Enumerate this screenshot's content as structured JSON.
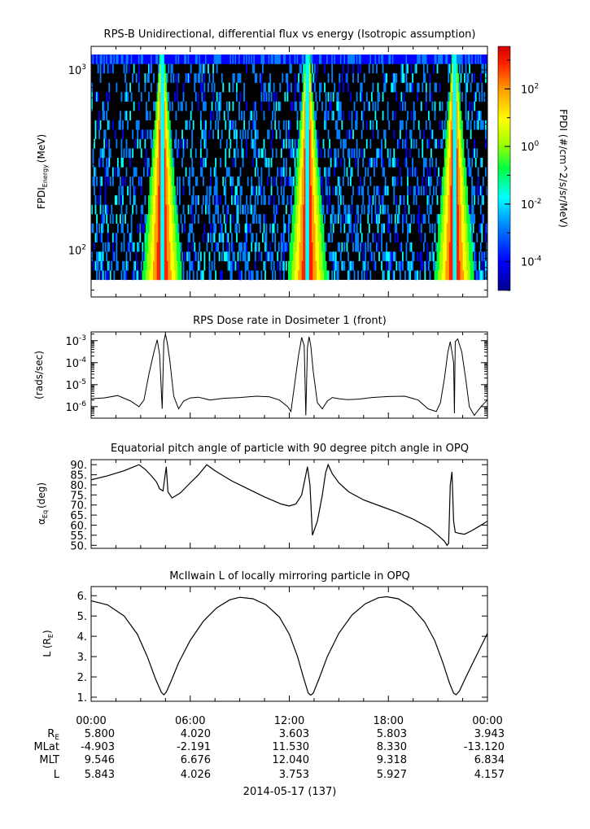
{
  "chart_data": [
    {
      "type": "heatmap",
      "title": "RPS-B  Unidirectional, differential flux vs energy (Isotropic assumption)",
      "ylabel": "FPDI",
      "ylabel_sub": "Energy",
      "ylabel_unit": "(MeV)",
      "yscale": "log",
      "ylim": [
        55,
        1350
      ],
      "ytick_labels": [
        {
          "base": "10",
          "exp": "3",
          "value": 1000
        },
        {
          "base": "10",
          "exp": "2",
          "value": 100
        }
      ],
      "xlim_hours": [
        0,
        24
      ],
      "energy_bins": 24,
      "colorbar": {
        "label": "FPDI (#/cm^2/s/sr/MeV)",
        "scale": "log",
        "range": [
          1e-05,
          3000
        ],
        "tick_labels": [
          {
            "base": "10",
            "exp": "2",
            "value": 100
          },
          {
            "base": "10",
            "exp": "0",
            "value": 1
          },
          {
            "base": "10",
            "exp": "-2",
            "value": 0.01
          },
          {
            "base": "10",
            "exp": "-4",
            "value": 0.0001
          }
        ]
      },
      "belt_passes_hours": [
        4.3,
        13.1,
        22.0
      ]
    },
    {
      "type": "line",
      "title": "RPS  Dose rate in Dosimeter 1 (front)",
      "ylabel": "(rads/sec)",
      "yscale": "log",
      "ylim": [
        3e-07,
        0.0025
      ],
      "ytick_labels": [
        {
          "base": "10",
          "exp": "-3",
          "value": 0.001
        },
        {
          "base": "10",
          "exp": "-4",
          "value": 0.0001
        },
        {
          "base": "10",
          "exp": "-5",
          "value": 1e-05
        },
        {
          "base": "10",
          "exp": "-6",
          "value": 1e-06
        }
      ],
      "x": [
        0,
        0.8,
        1.6,
        2.4,
        2.9,
        3.2,
        3.5,
        3.8,
        4.0,
        4.15,
        4.3,
        4.4,
        4.5,
        4.6,
        4.75,
        5.0,
        5.3,
        5.6,
        6.0,
        6.5,
        7.2,
        8.0,
        9.0,
        10.0,
        10.8,
        11.4,
        11.9,
        12.1,
        12.35,
        12.55,
        12.75,
        12.9,
        13.0,
        13.1,
        13.2,
        13.3,
        13.45,
        13.7,
        14.0,
        14.3,
        14.6,
        15.0,
        15.5,
        16.2,
        17.0,
        18.0,
        19.0,
        19.8,
        20.4,
        20.9,
        21.15,
        21.4,
        21.6,
        21.75,
        21.85,
        21.95,
        22.0,
        22.05,
        22.2,
        22.45,
        22.7,
        22.9,
        23.2,
        23.6,
        24.0
      ],
      "y": [
        2.3e-06,
        2.5e-06,
        3.2e-06,
        1.8e-06,
        1e-06,
        2e-06,
        3e-05,
        0.0003,
        0.0011,
        0.00022,
        8e-07,
        0.0009,
        0.002,
        0.0009,
        0.00015,
        3e-06,
        8e-07,
        1.8e-06,
        2.5e-06,
        2.7e-06,
        2e-06,
        2.4e-06,
        2.6e-06,
        3e-06,
        2.8e-06,
        2e-06,
        1e-06,
        6e-07,
        1.5e-05,
        0.0002,
        0.0014,
        0.0006,
        4e-07,
        0.0005,
        0.0015,
        0.0006,
        4e-05,
        1.5e-06,
        8e-07,
        1.8e-06,
        2.6e-06,
        2.3e-06,
        2.1e-06,
        2.2e-06,
        2.6e-06,
        2.9e-06,
        3e-06,
        2e-06,
        8e-07,
        6e-07,
        1.5e-06,
        2e-05,
        0.0003,
        0.0009,
        0.0003,
        0.0001,
        5e-07,
        0.0009,
        0.0012,
        0.0003,
        1.5e-05,
        1e-06,
        4e-07,
        1e-06,
        2e-06
      ]
    },
    {
      "type": "line",
      "title": "Equatorial pitch angle of particle with 90 degree pitch angle in OPQ",
      "ylabel": "α",
      "ylabel_sub": "Eq",
      "ylabel_unit": "(deg)",
      "ylim": [
        48.5,
        92.5
      ],
      "yticks": [
        50,
        55,
        60,
        65,
        70,
        75,
        80,
        85,
        90
      ],
      "ytick_labels": [
        "50.",
        "55.",
        "60.",
        "65.",
        "70.",
        "75.",
        "80.",
        "85.",
        "90."
      ],
      "x": [
        0,
        1.0,
        2.0,
        2.9,
        3.3,
        3.7,
        3.95,
        4.15,
        4.35,
        4.55,
        4.65,
        4.9,
        5.4,
        6.0,
        6.5,
        7.0,
        7.5,
        8.5,
        9.5,
        10.5,
        11.5,
        12.0,
        12.4,
        12.75,
        12.95,
        13.1,
        13.25,
        13.4,
        13.7,
        14.0,
        14.2,
        14.35,
        14.6,
        15.0,
        15.6,
        16.5,
        17.5,
        18.5,
        19.5,
        20.5,
        21.0,
        21.4,
        21.55,
        21.65,
        21.75,
        21.85,
        21.95,
        22.05,
        22.25,
        22.6,
        23.0,
        23.5,
        24.0
      ],
      "y": [
        82.5,
        84.5,
        87.0,
        90.0,
        87.5,
        84.0,
        81.5,
        78.0,
        77.0,
        89.0,
        76.5,
        73.5,
        76.0,
        81.0,
        85.0,
        90.0,
        87.0,
        82.0,
        78.0,
        74.0,
        70.5,
        69.5,
        70.5,
        75.0,
        83.0,
        89.0,
        80.0,
        55.0,
        62.0,
        75.0,
        86.0,
        90.0,
        85.5,
        81.0,
        76.5,
        72.5,
        69.5,
        66.5,
        63.0,
        58.5,
        55.0,
        52.0,
        50.0,
        51.0,
        80.0,
        86.5,
        62.0,
        56.5,
        56.0,
        55.5,
        57.0,
        59.5,
        62.0
      ]
    },
    {
      "type": "line",
      "title": "McIlwain L of locally mirroring particle in OPQ",
      "ylabel": "L (R",
      "ylabel_sub": "E",
      "ylabel_close": ")",
      "ylim": [
        0.8,
        6.45
      ],
      "yticks": [
        1,
        2,
        3,
        4,
        5,
        6
      ],
      "ytick_labels": [
        "1.",
        "2.",
        "3.",
        "4.",
        "5.",
        "6."
      ],
      "x": [
        0,
        1.0,
        2.0,
        2.8,
        3.4,
        3.9,
        4.25,
        4.4,
        4.55,
        4.85,
        5.3,
        6.0,
        6.8,
        7.6,
        8.4,
        9.0,
        9.8,
        10.6,
        11.4,
        12.0,
        12.5,
        12.85,
        13.15,
        13.3,
        13.45,
        13.8,
        14.3,
        15.0,
        15.8,
        16.6,
        17.4,
        17.9,
        18.6,
        19.4,
        20.2,
        20.8,
        21.3,
        21.7,
        21.95,
        22.1,
        22.3,
        22.7,
        23.3,
        24.0
      ],
      "y": [
        5.75,
        5.55,
        5.0,
        4.1,
        3.0,
        1.9,
        1.25,
        1.12,
        1.25,
        1.8,
        2.7,
        3.8,
        4.75,
        5.4,
        5.8,
        5.92,
        5.85,
        5.55,
        4.95,
        4.1,
        3.0,
        2.0,
        1.2,
        1.1,
        1.2,
        1.9,
        3.0,
        4.15,
        5.05,
        5.6,
        5.9,
        5.95,
        5.85,
        5.45,
        4.7,
        3.8,
        2.7,
        1.7,
        1.2,
        1.12,
        1.3,
        2.0,
        3.0,
        4.15
      ]
    }
  ],
  "x_axis": {
    "tick_labels": [
      "00:00",
      "06:00",
      "12:00",
      "18:00",
      "00:00"
    ],
    "hours": [
      0,
      6,
      12,
      18,
      24
    ],
    "minor_every_hours": 1.5
  },
  "ephemeris": {
    "rows": [
      {
        "label": "R",
        "label_sub": "E",
        "values": [
          "5.800",
          "4.020",
          "3.603",
          "5.803",
          "3.943"
        ]
      },
      {
        "label": "MLat",
        "label_sub": "",
        "values": [
          "-4.903",
          "-2.191",
          "11.530",
          "8.330",
          "-13.120"
        ]
      },
      {
        "label": "MLT",
        "label_sub": "",
        "values": [
          "9.546",
          "6.676",
          "12.040",
          "9.318",
          "6.834"
        ]
      },
      {
        "label": "L",
        "label_sub": "",
        "values": [
          "5.843",
          "4.026",
          "3.753",
          "5.927",
          "4.157"
        ]
      }
    ]
  },
  "date_label": "2014-05-17 (137)",
  "colors": {
    "line": "#000000",
    "background_cells": "#000000",
    "colormap": [
      "#00008c",
      "#0000ff",
      "#0080ff",
      "#00ffff",
      "#00ff40",
      "#a0ff00",
      "#ffff00",
      "#ffa000",
      "#ff2000",
      "#d00000"
    ]
  }
}
